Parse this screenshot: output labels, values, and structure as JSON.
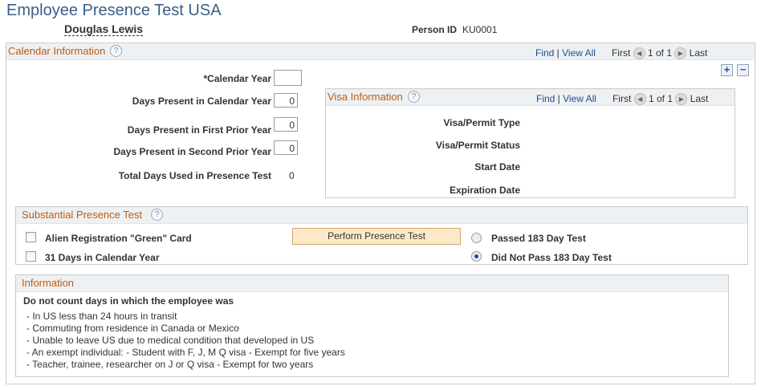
{
  "page": {
    "title": "Employee Presence Test USA",
    "employee_name": "Douglas Lewis",
    "person_id_label": "Person ID",
    "person_id": "KU0001"
  },
  "calendar": {
    "title": "Calendar Information",
    "find": "Find",
    "view_all": "View All",
    "first": "First",
    "count": "1 of 1",
    "last": "Last",
    "add": "+",
    "remove": "−",
    "fields": {
      "calendar_year_label": "*Calendar Year",
      "calendar_year": "",
      "days_cy_label": "Days Present in Calendar Year",
      "days_cy": "0",
      "days_p1_label": "Days Present in First Prior Year",
      "days_p1": "0",
      "days_p2_label": "Days Present in Second Prior Year",
      "days_p2": "0",
      "total_label": "Total Days Used in Presence Test",
      "total": "0"
    }
  },
  "visa": {
    "title": "Visa Information",
    "find": "Find",
    "view_all": "View All",
    "first": "First",
    "count": "1 of 1",
    "last": "Last",
    "type_label": "Visa/Permit Type",
    "status_label": "Visa/Permit Status",
    "start_label": "Start Date",
    "exp_label": "Expiration Date"
  },
  "spt": {
    "title": "Substantial Presence Test",
    "green_card": "Alien Registration \"Green\" Card",
    "green_card_checked": false,
    "days31": "31 Days in Calendar Year",
    "days31_checked": false,
    "button": "Perform Presence Test",
    "passed": "Passed 183 Day Test",
    "not_passed": "Did Not Pass 183 Day Test",
    "selected": "not_passed"
  },
  "info": {
    "title": "Information",
    "heading": "Do not count days in which the employee was",
    "items": [
      "- In US less than 24 hours in transit",
      "- Commuting from residence in Canada or Mexico",
      "- Unable to leave US due to medical condition that developed in US",
      "- An exempt individual: - Student with F, J, M Q visa - Exempt for five years",
      "- Teacher, trainee, researcher on J or Q visa - Exempt for two years"
    ]
  }
}
